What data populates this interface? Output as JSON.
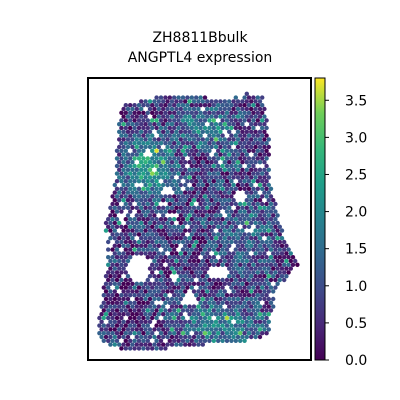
{
  "chart_data": {
    "type": "scatter",
    "subtype": "spatial-hexbin",
    "title_lines": [
      "ZH8811Bbulk",
      "ANGPTL4 expression"
    ],
    "xlabel": "",
    "ylabel": "",
    "colormap": "viridis",
    "colorbar": {
      "range": [
        0.0,
        3.8
      ],
      "ticks": [
        0.0,
        0.5,
        1.0,
        1.5,
        2.0,
        2.5,
        3.0,
        3.5
      ],
      "tick_labels": [
        "0.0",
        "0.5",
        "1.0",
        "1.5",
        "2.0",
        "2.5",
        "3.0",
        "3.5"
      ]
    },
    "axes_ticks_visible": false,
    "colors": {
      "viridis_low": "#440154",
      "viridis_mid": "#21918c",
      "viridis_high": "#fde725"
    }
  }
}
